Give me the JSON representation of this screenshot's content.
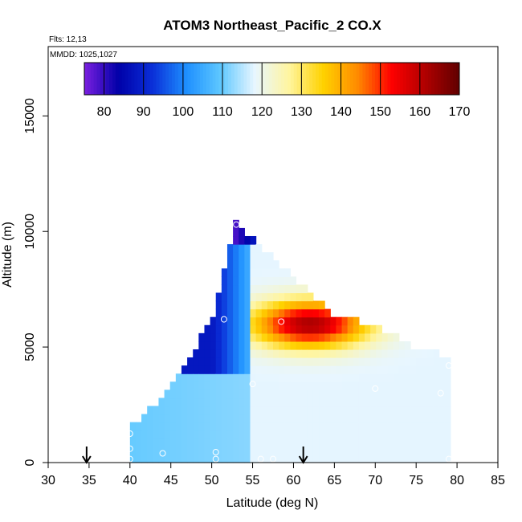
{
  "chart_data": {
    "type": "heatmap",
    "title": "ATOM3 Northeast_Pacific_2 CO.X",
    "notes": [
      "Flts: 12,13",
      "MMDD: 1025,1027"
    ],
    "xlabel": "Latitude (deg N)",
    "ylabel": "Altitude (m)",
    "xlim": [
      30,
      85
    ],
    "ylim": [
      0,
      18000
    ],
    "xticks": [
      30,
      35,
      40,
      45,
      50,
      55,
      60,
      65,
      70,
      75,
      80,
      85
    ],
    "yticks": [
      0,
      5000,
      10000,
      15000
    ],
    "colorbar": {
      "range": [
        75,
        170
      ],
      "ticks": [
        80,
        90,
        100,
        110,
        120,
        130,
        140,
        150,
        160,
        170
      ],
      "placement": "top-inside",
      "colors": [
        "#7b1fe0",
        "#0000a8",
        "#0a2fd8",
        "#1e90ff",
        "#5fc8ff",
        "#e8f6ff",
        "#fff5a0",
        "#ffd200",
        "#ff8c00",
        "#ff0000",
        "#b00000",
        "#600000"
      ]
    },
    "gridCells": {
      "latStep": 0.7,
      "altStep": 350,
      "latTop": [
        [
          40,
          1400
        ],
        [
          45,
          3000
        ],
        [
          50,
          6000
        ],
        [
          51,
          7500
        ],
        [
          53,
          10400
        ]
      ],
      "latBottom": [
        [
          53,
          10400
        ],
        [
          55,
          9500
        ],
        [
          60,
          7800
        ],
        [
          65,
          6200
        ],
        [
          70,
          5800
        ],
        [
          75,
          4800
        ],
        [
          77,
          4900
        ],
        [
          79,
          4200
        ],
        [
          79,
          0
        ]
      ]
    },
    "value_model": {
      "background_low": 110,
      "boundary_layer_top_m": 3800,
      "upper_west_value": 88,
      "upper_east_value": 118,
      "plume": {
        "center_lat": 62,
        "center_alt": 6000,
        "peak": 162,
        "lat_width": 7,
        "alt_width": 1000
      },
      "apex_value": 75
    },
    "sample_points": [
      {
        "lat": 40,
        "alt": 1250
      },
      {
        "lat": 40,
        "alt": 600
      },
      {
        "lat": 40,
        "alt": 150
      },
      {
        "lat": 44,
        "alt": 400
      },
      {
        "lat": 50.5,
        "alt": 450
      },
      {
        "lat": 50.5,
        "alt": 150
      },
      {
        "lat": 51.5,
        "alt": 6200
      },
      {
        "lat": 53,
        "alt": 10300
      },
      {
        "lat": 55,
        "alt": 3400
      },
      {
        "lat": 56,
        "alt": 150
      },
      {
        "lat": 57.5,
        "alt": 150
      },
      {
        "lat": 58.5,
        "alt": 6100
      },
      {
        "lat": 70,
        "alt": 3200
      },
      {
        "lat": 79,
        "alt": 4200
      },
      {
        "lat": 78,
        "alt": 3000
      },
      {
        "lat": 79,
        "alt": 150
      }
    ],
    "flight_markers": [
      {
        "lat": 34.7
      },
      {
        "lat": 61.2
      }
    ]
  }
}
